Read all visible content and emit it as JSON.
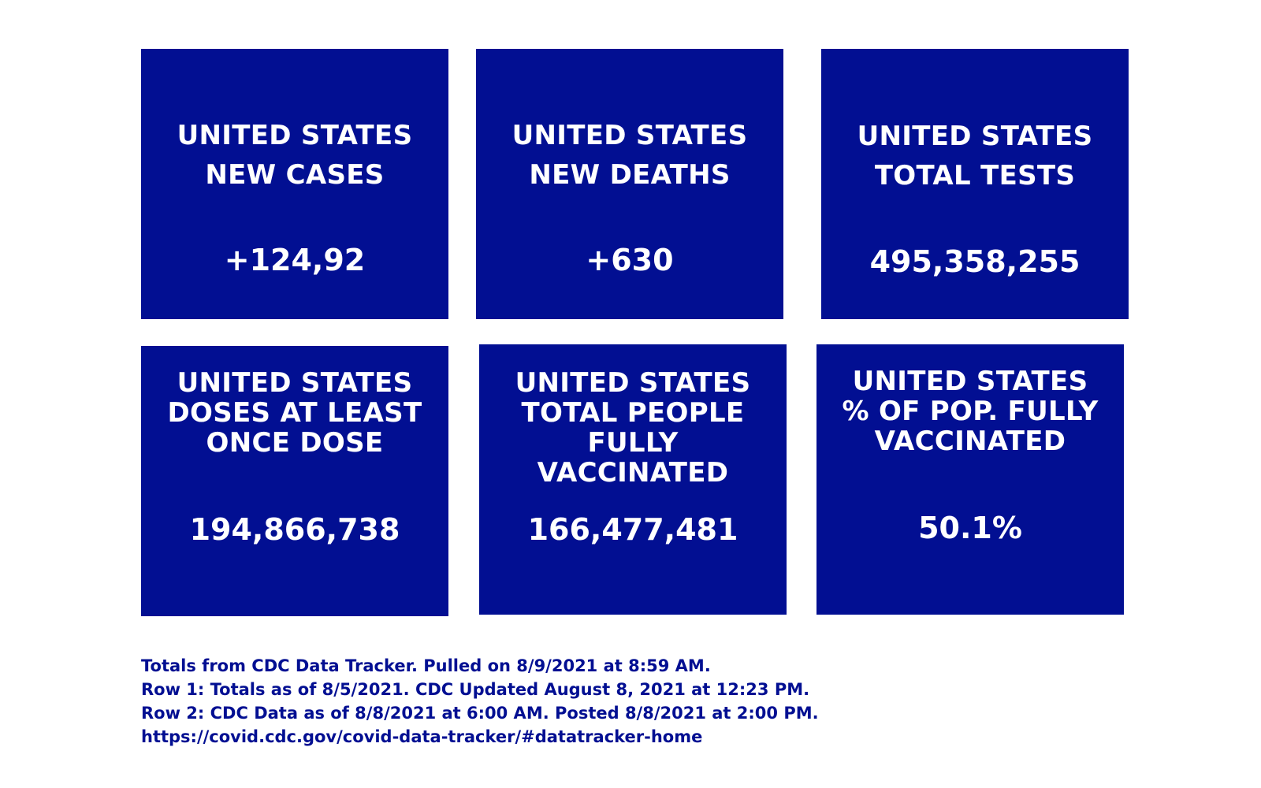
{
  "cards": [
    {
      "title_lines": [
        "UNITED STATES",
        "NEW CASES"
      ],
      "value": "+124,92"
    },
    {
      "title_lines": [
        "UNITED STATES",
        "NEW DEATHS"
      ],
      "value": "+630"
    },
    {
      "title_lines": [
        "UNITED STATES",
        "TOTAL TESTS"
      ],
      "value": "495,358,255"
    },
    {
      "title_lines": [
        "UNITED STATES",
        "DOSES AT LEAST",
        "ONCE DOSE"
      ],
      "value": "194,866,738"
    },
    {
      "title_lines": [
        "UNITED STATES",
        "TOTAL PEOPLE",
        "FULLY",
        "VACCINATED"
      ],
      "value": "166,477,481"
    },
    {
      "title_lines": [
        "UNITED STATES",
        "% OF POP. FULLY",
        "VACCINATED"
      ],
      "value": "50.1%"
    }
  ],
  "footer": {
    "lines": [
      "Totals from CDC Data Tracker. Pulled on 8/9/2021 at 8:59 AM.",
      "Row 1: Totals as of 8/5/2021. CDC Updated August 8, 2021 at 12:23 PM.",
      "Row 2: CDC Data as of 8/8/2021 at 6:00 AM. Posted 8/8/2021 at 2:00 PM.",
      "https://covid.cdc.gov/covid-data-tracker/#datatracker-home"
    ]
  },
  "colors": {
    "card_background": "#020f92",
    "card_text": "#ffffff",
    "footer_text": "#020f92",
    "page_background": "#ffffff"
  }
}
